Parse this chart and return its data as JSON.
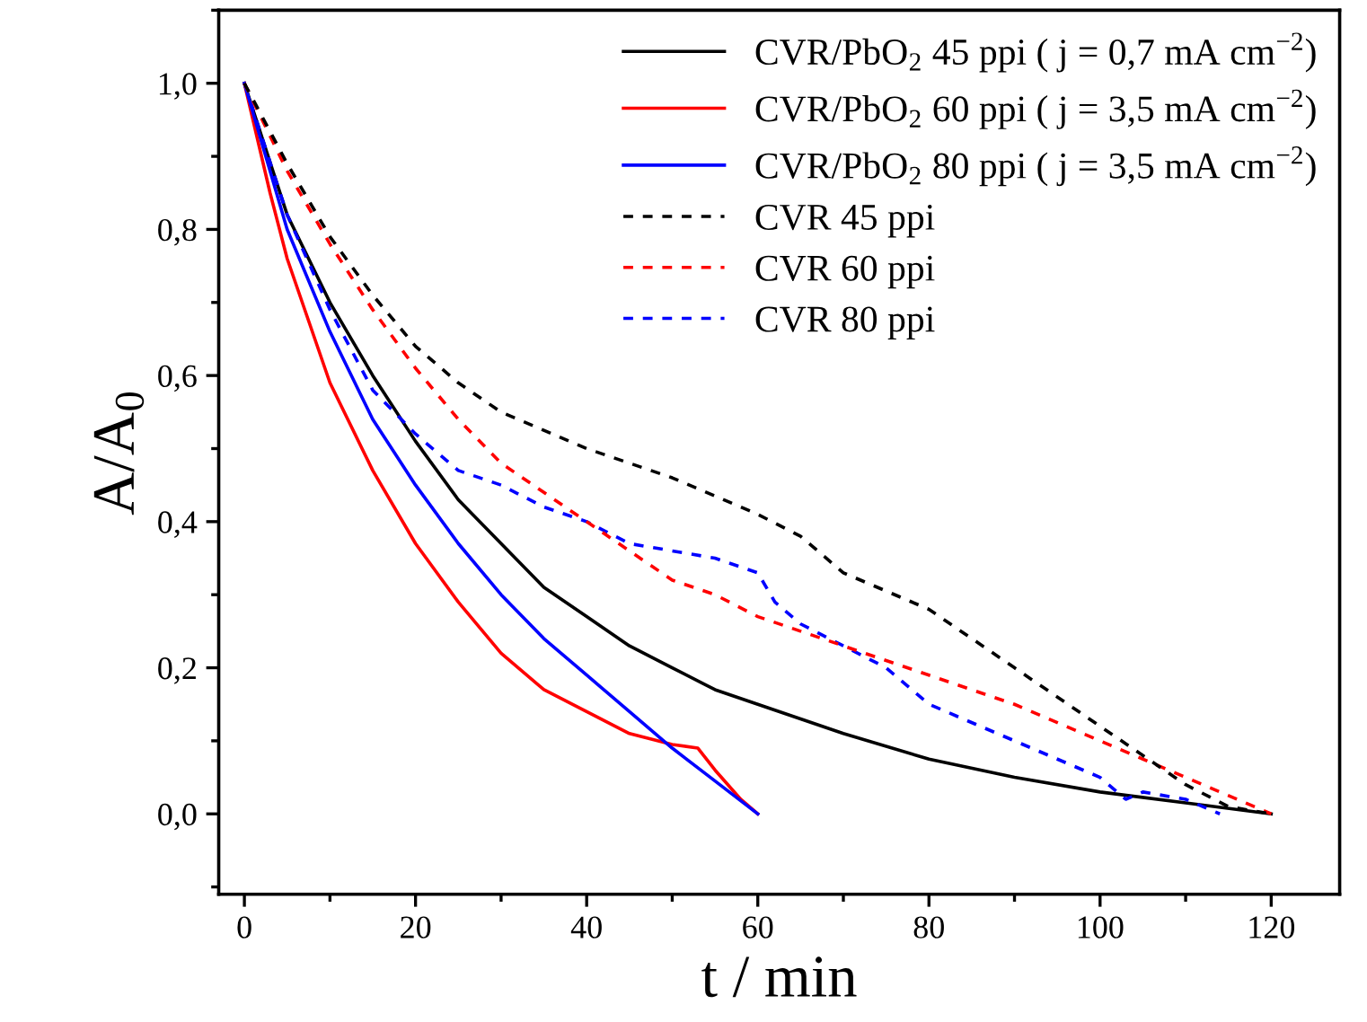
{
  "chart_data": {
    "type": "line",
    "xlabel": "t / min",
    "ylabel": "A/A$_{0}$",
    "xlim": [
      -3,
      128
    ],
    "xticks": [
      0,
      20,
      40,
      60,
      80,
      100,
      120
    ],
    "ylim": [
      -0.11,
      1.1
    ],
    "yticks": [
      {
        "value": 0,
        "label": "0,0"
      },
      {
        "value": 0.2,
        "label": "0,2"
      },
      {
        "value": 0.4,
        "label": "0,4"
      },
      {
        "value": 0.6,
        "label": "0,6"
      },
      {
        "value": 0.8,
        "label": "0,8"
      },
      {
        "value": 1.0,
        "label": "1,0"
      }
    ],
    "grid": false,
    "legend": "top right",
    "marker": "none",
    "series": [
      {
        "name": "CVR/PbO$_{2}$ 45 ppi ( j = 0,7 mA cm$^{−2}$)",
        "color": "#000000",
        "line_style": "solid",
        "x": [
          0,
          5,
          10,
          15,
          20,
          25,
          30,
          35,
          40,
          45,
          50,
          55,
          60,
          65,
          70,
          80,
          90,
          100,
          110,
          120
        ],
        "values": [
          1.0,
          0.82,
          0.7,
          0.6,
          0.51,
          0.43,
          0.37,
          0.31,
          0.27,
          0.23,
          0.2,
          0.17,
          0.15,
          0.13,
          0.11,
          0.075,
          0.05,
          0.03,
          0.015,
          0.0
        ]
      },
      {
        "name": "CVR/PbO$_{2}$ 60 ppi ( j = 3,5 mA cm$^{−2}$)",
        "color": "#ff0000",
        "line_style": "solid",
        "x": [
          0,
          3,
          5,
          10,
          15,
          20,
          25,
          30,
          35,
          40,
          45,
          50,
          53,
          55,
          58,
          60
        ],
        "values": [
          1.0,
          0.85,
          0.76,
          0.59,
          0.47,
          0.37,
          0.29,
          0.22,
          0.17,
          0.14,
          0.11,
          0.095,
          0.09,
          0.06,
          0.02,
          0.0
        ]
      },
      {
        "name": "CVR/PbO$_{2}$ 80 ppi ( j = 3,5 mA cm$^{−2}$)",
        "color": "#0000ff",
        "line_style": "solid",
        "x": [
          0,
          5,
          10,
          15,
          20,
          25,
          30,
          35,
          40,
          45,
          50,
          55,
          60
        ],
        "values": [
          1.0,
          0.8,
          0.66,
          0.54,
          0.45,
          0.37,
          0.3,
          0.24,
          0.19,
          0.14,
          0.09,
          0.045,
          0.0
        ]
      },
      {
        "name": "CVR 45 ppi",
        "color": "#000000",
        "line_style": "dashed",
        "x": [
          0,
          5,
          10,
          15,
          20,
          25,
          30,
          40,
          50,
          60,
          65,
          70,
          80,
          90,
          100,
          110,
          115,
          120
        ],
        "values": [
          1.0,
          0.89,
          0.79,
          0.71,
          0.64,
          0.59,
          0.55,
          0.5,
          0.46,
          0.41,
          0.38,
          0.33,
          0.28,
          0.2,
          0.12,
          0.04,
          0.01,
          0.0
        ]
      },
      {
        "name": "CVR 60 ppi",
        "color": "#ff0000",
        "line_style": "dashed",
        "x": [
          0,
          5,
          10,
          15,
          20,
          25,
          30,
          35,
          40,
          45,
          50,
          55,
          60,
          65,
          70,
          80,
          90,
          100,
          110,
          120
        ],
        "values": [
          1.0,
          0.88,
          0.78,
          0.69,
          0.61,
          0.54,
          0.48,
          0.44,
          0.4,
          0.36,
          0.32,
          0.3,
          0.27,
          0.25,
          0.23,
          0.19,
          0.15,
          0.1,
          0.05,
          0.0
        ]
      },
      {
        "name": "CVR 80 ppi",
        "color": "#0000ff",
        "line_style": "dashed",
        "x": [
          0,
          5,
          10,
          15,
          20,
          25,
          30,
          35,
          40,
          45,
          50,
          55,
          60,
          62,
          65,
          70,
          75,
          80,
          90,
          100,
          103,
          105,
          110,
          114
        ],
        "values": [
          1.0,
          0.82,
          0.69,
          0.58,
          0.52,
          0.47,
          0.45,
          0.42,
          0.4,
          0.37,
          0.36,
          0.35,
          0.33,
          0.29,
          0.26,
          0.23,
          0.2,
          0.15,
          0.1,
          0.05,
          0.02,
          0.03,
          0.02,
          0.0
        ]
      }
    ]
  }
}
